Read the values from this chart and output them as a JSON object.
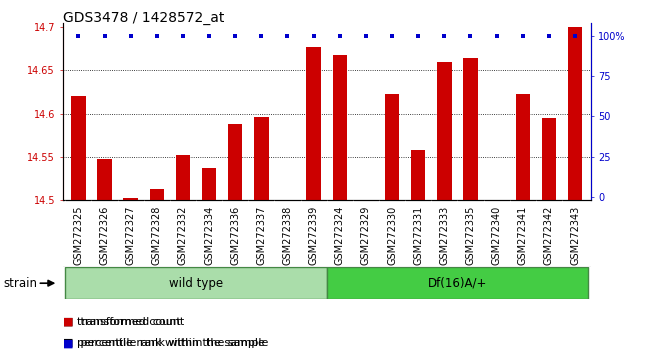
{
  "title": "GDS3478 / 1428572_at",
  "samples": [
    "GSM272325",
    "GSM272326",
    "GSM272327",
    "GSM272328",
    "GSM272332",
    "GSM272334",
    "GSM272336",
    "GSM272337",
    "GSM272338",
    "GSM272339",
    "GSM272324",
    "GSM272329",
    "GSM272330",
    "GSM272331",
    "GSM272333",
    "GSM272335",
    "GSM272340",
    "GSM272341",
    "GSM272342",
    "GSM272343"
  ],
  "values": [
    14.62,
    14.548,
    14.502,
    14.513,
    14.552,
    14.537,
    14.588,
    14.596,
    14.5,
    14.677,
    14.668,
    14.5,
    14.623,
    14.558,
    14.66,
    14.664,
    14.5,
    14.623,
    14.595,
    14.7
  ],
  "percentile_ranks": [
    100,
    100,
    100,
    100,
    100,
    100,
    100,
    100,
    100,
    100,
    100,
    100,
    100,
    100,
    100,
    100,
    100,
    100,
    100,
    100
  ],
  "wild_type_count": 10,
  "group1_label": "wild type",
  "group2_label": "Df(16)A/+",
  "strain_label": "strain",
  "ymin": 14.5,
  "ymax": 14.7,
  "yticks": [
    14.5,
    14.55,
    14.6,
    14.65,
    14.7
  ],
  "right_yticks": [
    0,
    25,
    50,
    75,
    100
  ],
  "right_ytick_labels": [
    "0",
    "25",
    "50",
    "75",
    "100%"
  ],
  "bar_color": "#cc0000",
  "percentile_color": "#0000cc",
  "bg_color": "#cccccc",
  "group1_color": "#aaddaa",
  "group2_color": "#44cc44",
  "legend_red_label": "transformed count",
  "legend_blue_label": "percentile rank within the sample",
  "title_fontsize": 10,
  "tick_fontsize": 7,
  "bar_width": 0.55
}
